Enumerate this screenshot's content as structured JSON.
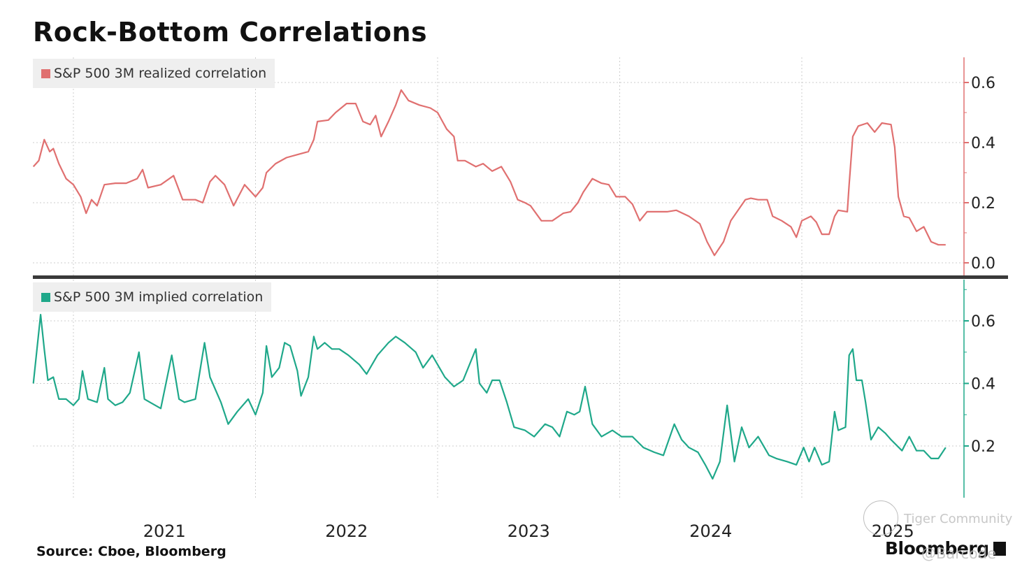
{
  "title": "Rock-Bottom Correlations",
  "source": "Source: Cboe, Bloomberg",
  "brand": "Bloomberg",
  "watermark": "Tiger Community",
  "watermark_handle": "@Barcode",
  "colors": {
    "realized": "#e07070",
    "implied": "#1fa88a",
    "grid": "#cccccc",
    "separator": "#3a3a3a",
    "legend_bg": "#efefef"
  },
  "chart_data": [
    {
      "type": "line",
      "title": "Rock-Bottom Correlations",
      "legend": "S&P 500 3M realized correlation",
      "legend_position": "top-left",
      "xlabel": "",
      "ylabel": "",
      "x_ticks": [
        "2021",
        "2022",
        "2023",
        "2024",
        "2025"
      ],
      "y_ticks": [
        "0.0",
        "0.2",
        "0.4",
        "0.6"
      ],
      "ylim": [
        0.0,
        0.6
      ],
      "xlim": [
        2020.78,
        2025.79
      ],
      "grid": true,
      "axis_side": "right",
      "series": [
        {
          "name": "S&P 500 3M realized correlation",
          "points": [
            [
              2020.78,
              0.32
            ],
            [
              2020.81,
              0.34
            ],
            [
              2020.84,
              0.41
            ],
            [
              2020.87,
              0.37
            ],
            [
              2020.89,
              0.38
            ],
            [
              2020.92,
              0.33
            ],
            [
              2020.96,
              0.28
            ],
            [
              2021.0,
              0.26
            ],
            [
              2021.04,
              0.22
            ],
            [
              2021.07,
              0.165
            ],
            [
              2021.1,
              0.21
            ],
            [
              2021.13,
              0.19
            ],
            [
              2021.17,
              0.26
            ],
            [
              2021.23,
              0.265
            ],
            [
              2021.29,
              0.265
            ],
            [
              2021.35,
              0.28
            ],
            [
              2021.38,
              0.31
            ],
            [
              2021.41,
              0.25
            ],
            [
              2021.48,
              0.26
            ],
            [
              2021.55,
              0.29
            ],
            [
              2021.6,
              0.21
            ],
            [
              2021.67,
              0.21
            ],
            [
              2021.71,
              0.2
            ],
            [
              2021.75,
              0.27
            ],
            [
              2021.78,
              0.29
            ],
            [
              2021.83,
              0.26
            ],
            [
              2021.88,
              0.19
            ],
            [
              2021.94,
              0.26
            ],
            [
              2022.0,
              0.22
            ],
            [
              2022.04,
              0.25
            ],
            [
              2022.06,
              0.3
            ],
            [
              2022.11,
              0.33
            ],
            [
              2022.17,
              0.35
            ],
            [
              2022.23,
              0.36
            ],
            [
              2022.29,
              0.37
            ],
            [
              2022.32,
              0.41
            ],
            [
              2022.34,
              0.47
            ],
            [
              2022.4,
              0.475
            ],
            [
              2022.44,
              0.5
            ],
            [
              2022.5,
              0.53
            ],
            [
              2022.55,
              0.53
            ],
            [
              2022.59,
              0.47
            ],
            [
              2022.63,
              0.46
            ],
            [
              2022.66,
              0.49
            ],
            [
              2022.69,
              0.42
            ],
            [
              2022.73,
              0.47
            ],
            [
              2022.77,
              0.525
            ],
            [
              2022.8,
              0.575
            ],
            [
              2022.84,
              0.54
            ],
            [
              2022.9,
              0.525
            ],
            [
              2022.96,
              0.515
            ],
            [
              2023.0,
              0.5
            ],
            [
              2023.05,
              0.445
            ],
            [
              2023.09,
              0.42
            ],
            [
              2023.11,
              0.34
            ],
            [
              2023.15,
              0.34
            ],
            [
              2023.21,
              0.32
            ],
            [
              2023.25,
              0.33
            ],
            [
              2023.3,
              0.305
            ],
            [
              2023.35,
              0.32
            ],
            [
              2023.4,
              0.27
            ],
            [
              2023.44,
              0.21
            ],
            [
              2023.48,
              0.2
            ],
            [
              2023.51,
              0.19
            ],
            [
              2023.57,
              0.14
            ],
            [
              2023.63,
              0.14
            ],
            [
              2023.69,
              0.165
            ],
            [
              2023.73,
              0.17
            ],
            [
              2023.77,
              0.2
            ],
            [
              2023.8,
              0.235
            ],
            [
              2023.85,
              0.28
            ],
            [
              2023.9,
              0.265
            ],
            [
              2023.94,
              0.26
            ],
            [
              2023.98,
              0.22
            ],
            [
              2024.03,
              0.22
            ],
            [
              2024.07,
              0.195
            ],
            [
              2024.11,
              0.14
            ],
            [
              2024.15,
              0.17
            ],
            [
              2024.21,
              0.17
            ],
            [
              2024.26,
              0.17
            ],
            [
              2024.31,
              0.175
            ],
            [
              2024.38,
              0.155
            ],
            [
              2024.44,
              0.13
            ],
            [
              2024.48,
              0.07
            ],
            [
              2024.52,
              0.025
            ],
            [
              2024.57,
              0.07
            ],
            [
              2024.61,
              0.14
            ],
            [
              2024.65,
              0.175
            ],
            [
              2024.69,
              0.21
            ],
            [
              2024.72,
              0.215
            ],
            [
              2024.76,
              0.21
            ],
            [
              2024.81,
              0.21
            ],
            [
              2024.84,
              0.155
            ],
            [
              2024.89,
              0.14
            ],
            [
              2024.94,
              0.12
            ],
            [
              2024.97,
              0.085
            ],
            [
              2025.0,
              0.14
            ],
            [
              2025.05,
              0.155
            ],
            [
              2025.08,
              0.135
            ],
            [
              2025.11,
              0.095
            ],
            [
              2025.15,
              0.095
            ],
            [
              2025.18,
              0.155
            ],
            [
              2025.2,
              0.175
            ],
            [
              2025.25,
              0.17
            ],
            [
              2025.26,
              0.26
            ],
            [
              2025.28,
              0.42
            ],
            [
              2025.31,
              0.455
            ],
            [
              2025.36,
              0.465
            ],
            [
              2025.4,
              0.435
            ],
            [
              2025.44,
              0.465
            ],
            [
              2025.49,
              0.46
            ],
            [
              2025.51,
              0.385
            ],
            [
              2025.53,
              0.22
            ],
            [
              2025.56,
              0.155
            ],
            [
              2025.59,
              0.15
            ],
            [
              2025.63,
              0.105
            ],
            [
              2025.67,
              0.12
            ],
            [
              2025.71,
              0.07
            ],
            [
              2025.75,
              0.06
            ],
            [
              2025.79,
              0.06
            ]
          ]
        }
      ]
    },
    {
      "type": "line",
      "legend": "S&P 500 3M implied correlation",
      "legend_position": "top-left",
      "xlabel": "",
      "ylabel": "",
      "x_ticks": [
        "2021",
        "2022",
        "2023",
        "2024",
        "2025"
      ],
      "y_ticks": [
        "0.2",
        "0.4",
        "0.6"
      ],
      "ylim": [
        0.06,
        0.73
      ],
      "xlim": [
        2020.78,
        2025.79
      ],
      "grid": true,
      "axis_side": "right",
      "series": [
        {
          "name": "S&P 500 3M implied correlation",
          "points": [
            [
              2020.78,
              0.4
            ],
            [
              2020.8,
              0.51
            ],
            [
              2020.82,
              0.62
            ],
            [
              2020.84,
              0.51
            ],
            [
              2020.86,
              0.41
            ],
            [
              2020.89,
              0.42
            ],
            [
              2020.92,
              0.35
            ],
            [
              2020.96,
              0.35
            ],
            [
              2021.0,
              0.33
            ],
            [
              2021.03,
              0.35
            ],
            [
              2021.05,
              0.44
            ],
            [
              2021.08,
              0.35
            ],
            [
              2021.13,
              0.34
            ],
            [
              2021.17,
              0.45
            ],
            [
              2021.19,
              0.35
            ],
            [
              2021.23,
              0.33
            ],
            [
              2021.27,
              0.34
            ],
            [
              2021.31,
              0.37
            ],
            [
              2021.36,
              0.5
            ],
            [
              2021.39,
              0.35
            ],
            [
              2021.42,
              0.34
            ],
            [
              2021.48,
              0.32
            ],
            [
              2021.54,
              0.49
            ],
            [
              2021.58,
              0.35
            ],
            [
              2021.61,
              0.34
            ],
            [
              2021.67,
              0.35
            ],
            [
              2021.72,
              0.53
            ],
            [
              2021.75,
              0.42
            ],
            [
              2021.81,
              0.34
            ],
            [
              2021.85,
              0.27
            ],
            [
              2021.9,
              0.31
            ],
            [
              2021.96,
              0.35
            ],
            [
              2022.0,
              0.3
            ],
            [
              2022.04,
              0.37
            ],
            [
              2022.06,
              0.52
            ],
            [
              2022.09,
              0.42
            ],
            [
              2022.13,
              0.45
            ],
            [
              2022.16,
              0.53
            ],
            [
              2022.19,
              0.52
            ],
            [
              2022.23,
              0.44
            ],
            [
              2022.25,
              0.36
            ],
            [
              2022.29,
              0.42
            ],
            [
              2022.32,
              0.55
            ],
            [
              2022.34,
              0.51
            ],
            [
              2022.38,
              0.53
            ],
            [
              2022.42,
              0.51
            ],
            [
              2022.46,
              0.51
            ],
            [
              2022.51,
              0.49
            ],
            [
              2022.57,
              0.46
            ],
            [
              2022.61,
              0.43
            ],
            [
              2022.67,
              0.49
            ],
            [
              2022.73,
              0.53
            ],
            [
              2022.77,
              0.55
            ],
            [
              2022.82,
              0.53
            ],
            [
              2022.88,
              0.5
            ],
            [
              2022.92,
              0.45
            ],
            [
              2022.97,
              0.49
            ],
            [
              2023.0,
              0.46
            ],
            [
              2023.04,
              0.42
            ],
            [
              2023.09,
              0.39
            ],
            [
              2023.14,
              0.41
            ],
            [
              2023.21,
              0.51
            ],
            [
              2023.23,
              0.4
            ],
            [
              2023.27,
              0.37
            ],
            [
              2023.3,
              0.41
            ],
            [
              2023.34,
              0.41
            ],
            [
              2023.38,
              0.34
            ],
            [
              2023.42,
              0.26
            ],
            [
              2023.48,
              0.25
            ],
            [
              2023.53,
              0.23
            ],
            [
              2023.59,
              0.27
            ],
            [
              2023.63,
              0.26
            ],
            [
              2023.67,
              0.23
            ],
            [
              2023.71,
              0.31
            ],
            [
              2023.75,
              0.3
            ],
            [
              2023.78,
              0.31
            ],
            [
              2023.81,
              0.39
            ],
            [
              2023.85,
              0.27
            ],
            [
              2023.9,
              0.23
            ],
            [
              2023.96,
              0.25
            ],
            [
              2024.01,
              0.23
            ],
            [
              2024.07,
              0.23
            ],
            [
              2024.13,
              0.195
            ],
            [
              2024.19,
              0.18
            ],
            [
              2024.24,
              0.17
            ],
            [
              2024.3,
              0.27
            ],
            [
              2024.34,
              0.22
            ],
            [
              2024.38,
              0.195
            ],
            [
              2024.43,
              0.18
            ],
            [
              2024.47,
              0.14
            ],
            [
              2024.51,
              0.095
            ],
            [
              2024.55,
              0.15
            ],
            [
              2024.59,
              0.33
            ],
            [
              2024.63,
              0.15
            ],
            [
              2024.67,
              0.26
            ],
            [
              2024.71,
              0.195
            ],
            [
              2024.76,
              0.23
            ],
            [
              2024.82,
              0.17
            ],
            [
              2024.86,
              0.16
            ],
            [
              2024.92,
              0.15
            ],
            [
              2024.97,
              0.14
            ],
            [
              2025.01,
              0.195
            ],
            [
              2025.04,
              0.15
            ],
            [
              2025.07,
              0.195
            ],
            [
              2025.11,
              0.14
            ],
            [
              2025.15,
              0.15
            ],
            [
              2025.18,
              0.31
            ],
            [
              2025.2,
              0.25
            ],
            [
              2025.24,
              0.26
            ],
            [
              2025.26,
              0.49
            ],
            [
              2025.28,
              0.51
            ],
            [
              2025.3,
              0.41
            ],
            [
              2025.33,
              0.41
            ],
            [
              2025.35,
              0.34
            ],
            [
              2025.38,
              0.22
            ],
            [
              2025.42,
              0.26
            ],
            [
              2025.46,
              0.24
            ],
            [
              2025.49,
              0.22
            ],
            [
              2025.55,
              0.185
            ],
            [
              2025.59,
              0.23
            ],
            [
              2025.63,
              0.185
            ],
            [
              2025.67,
              0.185
            ],
            [
              2025.71,
              0.16
            ],
            [
              2025.75,
              0.16
            ],
            [
              2025.79,
              0.195
            ]
          ]
        }
      ]
    }
  ]
}
